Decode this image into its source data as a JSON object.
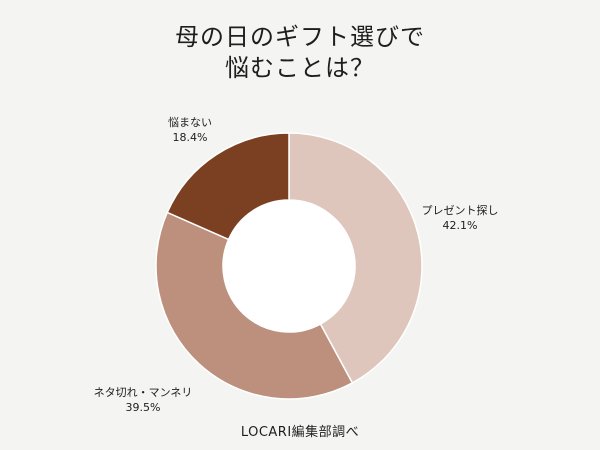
{
  "title_line1": "母の日のギフト選びで",
  "title_line2": "悩むことは？",
  "source": "LOCARI編集部調べ",
  "chart_data": {
    "type": "pie",
    "title": "母の日のギフト選びで 悩むことは？",
    "donut": true,
    "categories": [
      "プレゼント探し",
      "ネタ切れ・マンネリ",
      "悩まない"
    ],
    "values": [
      42.1,
      39.5,
      18.4
    ],
    "value_labels": [
      "42.1%",
      "39.5%",
      "18.4%"
    ],
    "unit": "%",
    "colors": [
      "#dfc6bd",
      "#bd8f7d",
      "#7b3f21"
    ],
    "start": "12 o'clock",
    "direction": "clockwise",
    "legend": "none"
  }
}
